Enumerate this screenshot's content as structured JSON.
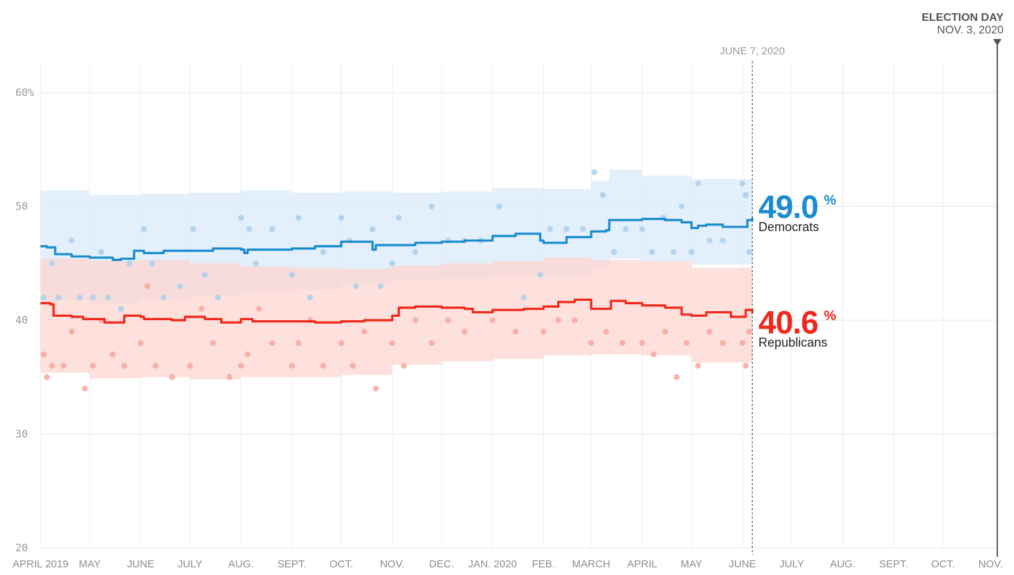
{
  "chart_data": {
    "type": "line",
    "y_tick_labels": [
      "60%",
      "50",
      "40",
      "30",
      "20"
    ],
    "y_ticks": [
      60,
      50,
      40,
      30,
      20
    ],
    "ylim": [
      20,
      62
    ],
    "x_tick_labels": [
      "APRIL 2019",
      "MAY",
      "JUNE",
      "JULY",
      "AUG.",
      "SEPT.",
      "OCT.",
      "NOV.",
      "DEC.",
      "JAN. 2020",
      "FEB.",
      "MARCH",
      "APRIL",
      "MAY",
      "JUNE",
      "JULY",
      "AUG.",
      "SEPT.",
      "OCT.",
      "NOV."
    ],
    "x_tick_dates": [
      "2019-04-01",
      "2019-05-01",
      "2019-06-01",
      "2019-07-01",
      "2019-08-01",
      "2019-09-01",
      "2019-10-01",
      "2019-11-01",
      "2019-12-01",
      "2020-01-01",
      "2020-02-01",
      "2020-03-01",
      "2020-04-01",
      "2020-05-01",
      "2020-06-01",
      "2020-07-01",
      "2020-08-01",
      "2020-09-01",
      "2020-10-01",
      "2020-11-01"
    ],
    "xlim": [
      "2019-04-01",
      "2020-11-03"
    ],
    "grid": true,
    "current_marker": {
      "label": "JUNE 7, 2020",
      "date": "2020-06-07"
    },
    "election_marker": {
      "title": "ELECTION DAY",
      "date_label": "NOV. 3, 2020",
      "date": "2020-11-03"
    },
    "series": [
      {
        "name": "Democrats",
        "color": "#1a8ccf",
        "band_color": "#d9eaf8",
        "dot_color": "#a8d0ef",
        "final_value": "49.0",
        "trend": [
          [
            "2019-04-01",
            46.5
          ],
          [
            "2019-04-05",
            46.4
          ],
          [
            "2019-04-10",
            45.8
          ],
          [
            "2019-04-20",
            45.6
          ],
          [
            "2019-05-01",
            45.5
          ],
          [
            "2019-05-10",
            45.5
          ],
          [
            "2019-05-15",
            45.3
          ],
          [
            "2019-05-20",
            45.4
          ],
          [
            "2019-05-27",
            45.4
          ],
          [
            "2019-05-28",
            46.1
          ],
          [
            "2019-06-01",
            46.1
          ],
          [
            "2019-06-03",
            45.9
          ],
          [
            "2019-06-15",
            46.1
          ],
          [
            "2019-07-01",
            46.1
          ],
          [
            "2019-07-15",
            46.3
          ],
          [
            "2019-08-01",
            46.2
          ],
          [
            "2019-08-03",
            45.9
          ],
          [
            "2019-08-05",
            46.2
          ],
          [
            "2019-08-20",
            46.2
          ],
          [
            "2019-09-01",
            46.3
          ],
          [
            "2019-09-15",
            46.5
          ],
          [
            "2019-10-01",
            46.9
          ],
          [
            "2019-10-15",
            46.9
          ],
          [
            "2019-10-20",
            46.2
          ],
          [
            "2019-10-22",
            46.6
          ],
          [
            "2019-11-01",
            46.6
          ],
          [
            "2019-11-15",
            46.8
          ],
          [
            "2019-12-01",
            46.9
          ],
          [
            "2019-12-15",
            47.0
          ],
          [
            "2020-01-01",
            47.4
          ],
          [
            "2020-01-15",
            47.6
          ],
          [
            "2020-01-28",
            47.6
          ],
          [
            "2020-01-30",
            47.0
          ],
          [
            "2020-02-01",
            46.8
          ],
          [
            "2020-02-15",
            47.3
          ],
          [
            "2020-03-01",
            47.8
          ],
          [
            "2020-03-10",
            47.9
          ],
          [
            "2020-03-12",
            48.8
          ],
          [
            "2020-03-25",
            48.8
          ],
          [
            "2020-04-01",
            48.9
          ],
          [
            "2020-04-15",
            48.8
          ],
          [
            "2020-04-25",
            48.6
          ],
          [
            "2020-05-01",
            48.1
          ],
          [
            "2020-05-05",
            48.3
          ],
          [
            "2020-05-10",
            48.4
          ],
          [
            "2020-05-20",
            48.2
          ],
          [
            "2020-06-01",
            48.2
          ],
          [
            "2020-06-04",
            48.8
          ],
          [
            "2020-06-07",
            49.0
          ]
        ],
        "band": [
          [
            "2019-04-01",
            51.4,
            41.8
          ],
          [
            "2019-05-01",
            51.0,
            41.5
          ],
          [
            "2019-06-01",
            51.1,
            41.8
          ],
          [
            "2019-07-01",
            51.2,
            42.2
          ],
          [
            "2019-08-01",
            51.4,
            42.5
          ],
          [
            "2019-09-01",
            51.2,
            42.7
          ],
          [
            "2019-10-01",
            51.3,
            43.2
          ],
          [
            "2019-11-01",
            51.2,
            43.5
          ],
          [
            "2019-12-01",
            51.3,
            43.7
          ],
          [
            "2020-01-01",
            51.6,
            43.9
          ],
          [
            "2020-02-01",
            51.5,
            43.8
          ],
          [
            "2020-03-01",
            52.2,
            44.6
          ],
          [
            "2020-03-12",
            53.2,
            45.4
          ],
          [
            "2020-04-01",
            52.7,
            45.2
          ],
          [
            "2020-05-01",
            52.4,
            44.9
          ],
          [
            "2020-06-07",
            53.0,
            45.3
          ]
        ],
        "polls": [
          [
            "2019-04-03",
            42
          ],
          [
            "2019-04-08",
            45
          ],
          [
            "2019-04-12",
            42
          ],
          [
            "2019-04-20",
            47
          ],
          [
            "2019-04-25",
            42
          ],
          [
            "2019-05-03",
            42
          ],
          [
            "2019-05-08",
            46
          ],
          [
            "2019-05-12",
            42
          ],
          [
            "2019-05-20",
            41
          ],
          [
            "2019-05-25",
            45
          ],
          [
            "2019-06-03",
            48
          ],
          [
            "2019-06-08",
            45
          ],
          [
            "2019-06-15",
            42
          ],
          [
            "2019-06-25",
            43
          ],
          [
            "2019-07-03",
            48
          ],
          [
            "2019-07-10",
            44
          ],
          [
            "2019-07-18",
            42
          ],
          [
            "2019-08-01",
            49
          ],
          [
            "2019-08-06",
            48
          ],
          [
            "2019-08-10",
            45
          ],
          [
            "2019-08-20",
            48
          ],
          [
            "2019-09-01",
            44
          ],
          [
            "2019-09-05",
            49
          ],
          [
            "2019-09-12",
            42
          ],
          [
            "2019-09-20",
            46
          ],
          [
            "2019-10-01",
            49
          ],
          [
            "2019-10-06",
            47
          ],
          [
            "2019-10-10",
            43
          ],
          [
            "2019-10-20",
            48
          ],
          [
            "2019-10-25",
            43
          ],
          [
            "2019-11-01",
            45
          ],
          [
            "2019-11-05",
            49
          ],
          [
            "2019-11-15",
            46
          ],
          [
            "2019-11-25",
            50
          ],
          [
            "2019-12-05",
            47
          ],
          [
            "2019-12-15",
            47
          ],
          [
            "2019-12-25",
            47
          ],
          [
            "2020-01-05",
            50
          ],
          [
            "2020-01-20",
            42
          ],
          [
            "2020-01-30",
            44
          ],
          [
            "2020-02-05",
            48
          ],
          [
            "2020-02-15",
            48
          ],
          [
            "2020-02-25",
            48
          ],
          [
            "2020-03-03",
            53
          ],
          [
            "2020-03-08",
            51
          ],
          [
            "2020-03-15",
            46
          ],
          [
            "2020-03-22",
            48
          ],
          [
            "2020-04-01",
            48
          ],
          [
            "2020-04-07",
            46
          ],
          [
            "2020-04-14",
            49
          ],
          [
            "2020-04-20",
            46
          ],
          [
            "2020-04-25",
            50
          ],
          [
            "2020-05-01",
            46
          ],
          [
            "2020-05-05",
            52
          ],
          [
            "2020-05-12",
            47
          ],
          [
            "2020-05-20",
            47
          ],
          [
            "2020-06-01",
            52
          ],
          [
            "2020-06-03",
            51
          ],
          [
            "2020-06-05",
            46
          ]
        ]
      },
      {
        "name": "Republicans",
        "color": "#f0281b",
        "band_color": "#fdd6d0",
        "dot_color": "#f7a79c",
        "final_value": "40.6",
        "trend": [
          [
            "2019-04-01",
            41.5
          ],
          [
            "2019-04-07",
            41.4
          ],
          [
            "2019-04-09",
            40.4
          ],
          [
            "2019-04-20",
            40.3
          ],
          [
            "2019-04-27",
            40.1
          ],
          [
            "2019-05-01",
            40.1
          ],
          [
            "2019-05-10",
            39.8
          ],
          [
            "2019-05-20",
            39.8
          ],
          [
            "2019-05-22",
            40.4
          ],
          [
            "2019-06-01",
            40.3
          ],
          [
            "2019-06-03",
            40.1
          ],
          [
            "2019-06-20",
            40.0
          ],
          [
            "2019-06-28",
            40.3
          ],
          [
            "2019-07-10",
            40.1
          ],
          [
            "2019-07-20",
            39.8
          ],
          [
            "2019-08-01",
            40.1
          ],
          [
            "2019-08-08",
            39.9
          ],
          [
            "2019-09-01",
            39.9
          ],
          [
            "2019-09-15",
            39.8
          ],
          [
            "2019-10-01",
            39.9
          ],
          [
            "2019-10-15",
            40.0
          ],
          [
            "2019-11-01",
            40.4
          ],
          [
            "2019-11-05",
            41.1
          ],
          [
            "2019-11-15",
            41.2
          ],
          [
            "2019-12-01",
            41.1
          ],
          [
            "2019-12-15",
            41.0
          ],
          [
            "2019-12-20",
            40.7
          ],
          [
            "2020-01-01",
            40.9
          ],
          [
            "2020-01-20",
            41.0
          ],
          [
            "2020-02-01",
            41.2
          ],
          [
            "2020-02-10",
            41.6
          ],
          [
            "2020-02-20",
            41.8
          ],
          [
            "2020-03-01",
            41.0
          ],
          [
            "2020-03-10",
            41.0
          ],
          [
            "2020-03-13",
            41.7
          ],
          [
            "2020-03-22",
            41.5
          ],
          [
            "2020-04-01",
            41.3
          ],
          [
            "2020-04-15",
            41.1
          ],
          [
            "2020-04-25",
            40.5
          ],
          [
            "2020-05-01",
            40.4
          ],
          [
            "2020-05-10",
            40.7
          ],
          [
            "2020-05-20",
            40.7
          ],
          [
            "2020-05-25",
            40.3
          ],
          [
            "2020-06-01",
            40.3
          ],
          [
            "2020-06-03",
            40.9
          ],
          [
            "2020-06-07",
            40.6
          ]
        ],
        "band": [
          [
            "2019-04-01",
            45.4,
            35.4
          ],
          [
            "2019-05-01",
            45.2,
            34.9
          ],
          [
            "2019-06-01",
            45.3,
            35.0
          ],
          [
            "2019-07-01",
            45.0,
            34.8
          ],
          [
            "2019-08-01",
            44.7,
            35.0
          ],
          [
            "2019-09-01",
            44.6,
            35.0
          ],
          [
            "2019-10-01",
            44.5,
            35.2
          ],
          [
            "2019-11-01",
            44.8,
            36.1
          ],
          [
            "2019-12-01",
            45.0,
            36.4
          ],
          [
            "2020-01-01",
            45.2,
            36.6
          ],
          [
            "2020-02-01",
            45.5,
            36.9
          ],
          [
            "2020-03-01",
            45.3,
            37.0
          ],
          [
            "2020-04-01",
            45.2,
            36.9
          ],
          [
            "2020-05-01",
            44.6,
            36.3
          ],
          [
            "2020-06-07",
            45.3,
            36.2
          ]
        ],
        "polls": [
          [
            "2019-04-03",
            37
          ],
          [
            "2019-04-05",
            35
          ],
          [
            "2019-04-08",
            36
          ],
          [
            "2019-04-15",
            36
          ],
          [
            "2019-04-20",
            39
          ],
          [
            "2019-04-28",
            34
          ],
          [
            "2019-05-03",
            36
          ],
          [
            "2019-05-08",
            40
          ],
          [
            "2019-05-15",
            37
          ],
          [
            "2019-05-22",
            36
          ],
          [
            "2019-06-01",
            38
          ],
          [
            "2019-06-05",
            43
          ],
          [
            "2019-06-10",
            36
          ],
          [
            "2019-06-20",
            35
          ],
          [
            "2019-07-01",
            36
          ],
          [
            "2019-07-08",
            41
          ],
          [
            "2019-07-15",
            38
          ],
          [
            "2019-07-25",
            35
          ],
          [
            "2019-08-01",
            36
          ],
          [
            "2019-08-05",
            37
          ],
          [
            "2019-08-12",
            41
          ],
          [
            "2019-08-20",
            38
          ],
          [
            "2019-09-01",
            36
          ],
          [
            "2019-09-05",
            38
          ],
          [
            "2019-09-12",
            40
          ],
          [
            "2019-09-20",
            36
          ],
          [
            "2019-10-01",
            38
          ],
          [
            "2019-10-08",
            36
          ],
          [
            "2019-10-15",
            39
          ],
          [
            "2019-10-22",
            34
          ],
          [
            "2019-11-01",
            38
          ],
          [
            "2019-11-08",
            36
          ],
          [
            "2019-11-15",
            40
          ],
          [
            "2019-11-25",
            38
          ],
          [
            "2019-12-05",
            40
          ],
          [
            "2019-12-15",
            39
          ],
          [
            "2020-01-01",
            40
          ],
          [
            "2020-01-15",
            39
          ],
          [
            "2020-02-01",
            39
          ],
          [
            "2020-02-10",
            40
          ],
          [
            "2020-02-20",
            40
          ],
          [
            "2020-03-01",
            38
          ],
          [
            "2020-03-10",
            39
          ],
          [
            "2020-03-20",
            38
          ],
          [
            "2020-04-01",
            38
          ],
          [
            "2020-04-08",
            37
          ],
          [
            "2020-04-15",
            39
          ],
          [
            "2020-04-22",
            35
          ],
          [
            "2020-04-28",
            38
          ],
          [
            "2020-05-05",
            36
          ],
          [
            "2020-05-12",
            39
          ],
          [
            "2020-05-20",
            38
          ],
          [
            "2020-06-01",
            38
          ],
          [
            "2020-06-03",
            36
          ],
          [
            "2020-06-05",
            39
          ]
        ]
      }
    ]
  }
}
